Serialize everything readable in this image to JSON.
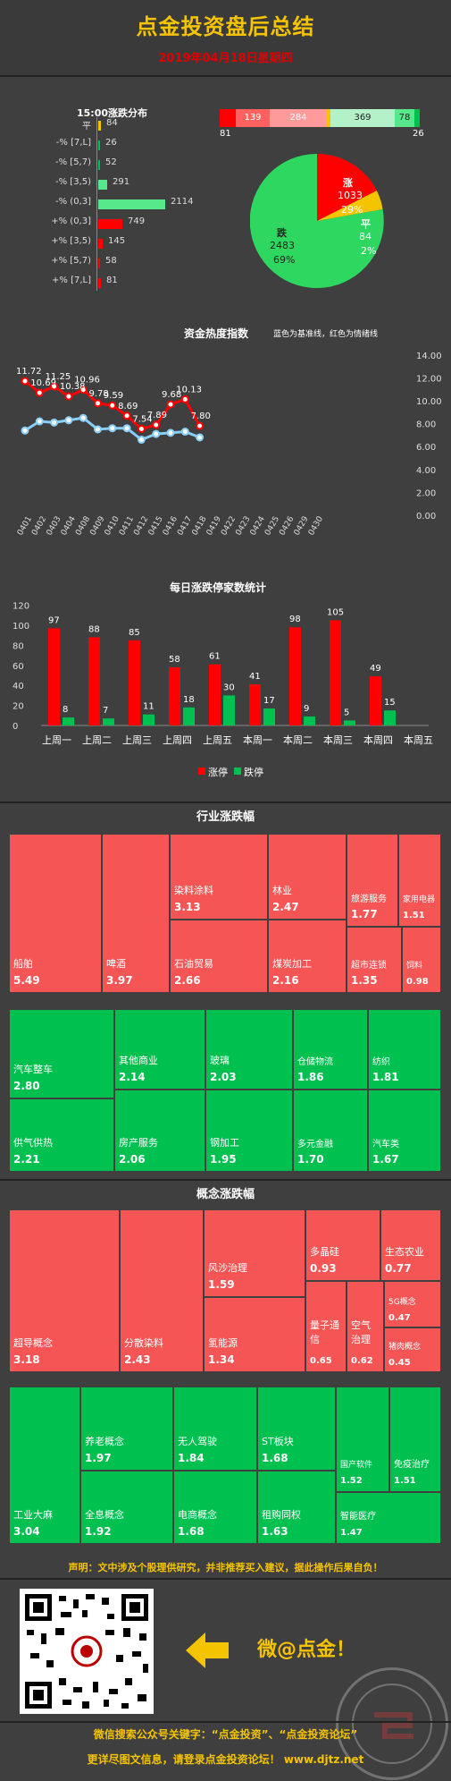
{
  "header": {
    "title": "点金投资盘后总结",
    "date": "2019年04月18日星期四"
  },
  "distribution": {
    "title": "15:00涨跌分布",
    "rows": [
      {
        "label": "平",
        "value": "84",
        "color": "#f5c400"
      },
      {
        "label": "-% [7,L]",
        "value": "26",
        "color": "#00c050"
      },
      {
        "label": "-% [5,7)",
        "value": "52",
        "color": "#00c050"
      },
      {
        "label": "-% [3,5)",
        "value": "291",
        "color": "#56e88a"
      },
      {
        "label": "-% (0,3]",
        "value": "2114",
        "color": "#56e88a"
      },
      {
        "label": "+% (0,3]",
        "value": "749",
        "color": "#ff0000"
      },
      {
        "label": "+% [3,5)",
        "value": "145",
        "color": "#ff0000"
      },
      {
        "label": "+% [5,7)",
        "value": "58",
        "color": "#ff0000"
      },
      {
        "label": "+% [7,L]",
        "value": "81",
        "color": "#ff0000"
      }
    ],
    "stack_top": [
      "139",
      "284",
      "369",
      "78"
    ],
    "stack_left": "81",
    "stack_right": "26"
  },
  "pie": {
    "up_label": "涨",
    "up_count": "1033",
    "up_pct": "29%",
    "flat_label": "平",
    "flat_count": "84",
    "flat_pct": "2%",
    "down_label": "跌",
    "down_count": "2483",
    "down_pct": "69%"
  },
  "heat": {
    "title": "资金热度指数",
    "note": "蓝色为基准线，红色为情绪线",
    "red_values": [
      "11.72",
      "10.69",
      "11.25",
      "10.38",
      "10.96",
      "9.78",
      "9.59",
      "8.69",
      "7.54",
      "7.89",
      "9.68",
      "10.13",
      "7.80"
    ],
    "yticks": [
      "14.00",
      "12.00",
      "10.00",
      "8.00",
      "6.00",
      "4.00",
      "2.00",
      "0.00"
    ],
    "xticks": [
      "0401",
      "0402",
      "0403",
      "0404",
      "0408",
      "0409",
      "0410",
      "0411",
      "0412",
      "0415",
      "0416",
      "0417",
      "0418",
      "0419",
      "0422",
      "0423",
      "0424",
      "0425",
      "0426",
      "0429",
      "0430"
    ]
  },
  "limit": {
    "title": "每日涨跌停家数统计",
    "legend_up": "涨停",
    "legend_down": "跌停"
  },
  "chart_data": [
    {
      "type": "line",
      "title": "资金热度指数",
      "x": [
        "0401",
        "0402",
        "0403",
        "0404",
        "0408",
        "0409",
        "0410",
        "0411",
        "0412",
        "0415",
        "0416",
        "0417",
        "0418"
      ],
      "series": [
        {
          "name": "情绪线",
          "color": "#ff0000",
          "values": [
            11.72,
            10.69,
            11.25,
            10.38,
            10.96,
            9.78,
            9.59,
            8.69,
            7.54,
            7.89,
            9.68,
            10.13,
            7.8
          ]
        },
        {
          "name": "基准线",
          "color": "#87cefa",
          "values": [
            7.4,
            8.2,
            8.1,
            8.3,
            8.5,
            7.5,
            7.6,
            7.6,
            6.6,
            7.1,
            7.2,
            7.3,
            6.8
          ]
        }
      ],
      "ylim": [
        0,
        14
      ]
    },
    {
      "type": "bar",
      "title": "每日涨跌停家数统计",
      "categories": [
        "上周一",
        "上周二",
        "上周三",
        "上周四",
        "上周五",
        "本周一",
        "本周二",
        "本周三",
        "本周四",
        "本周五"
      ],
      "series": [
        {
          "name": "涨停",
          "color": "#ff0000",
          "values": [
            97,
            88,
            85,
            58,
            61,
            41,
            98,
            105,
            49,
            null
          ]
        },
        {
          "name": "跌停",
          "color": "#00c050",
          "values": [
            8,
            7,
            11,
            18,
            30,
            17,
            9,
            5,
            15,
            null
          ]
        }
      ],
      "yticks": [
        "120",
        "100",
        "80",
        "60",
        "40",
        "20",
        "0"
      ],
      "ylim": [
        0,
        120
      ]
    }
  ],
  "industry": {
    "title": "行业涨跌幅",
    "red": [
      {
        "name": "船舶",
        "value": "5.49"
      },
      {
        "name": "啤酒",
        "value": "3.97"
      },
      {
        "name": "染料涂料",
        "value": "3.13"
      },
      {
        "name": "石油贸易",
        "value": "2.66"
      },
      {
        "name": "林业",
        "value": "2.47"
      },
      {
        "name": "煤炭加工",
        "value": "2.16"
      },
      {
        "name": "旅游服务",
        "value": "1.77"
      },
      {
        "name": "家用电器",
        "value": "1.51"
      },
      {
        "name": "超市连锁",
        "value": "1.35"
      },
      {
        "name": "饲料",
        "value": "0.98"
      }
    ],
    "green": [
      {
        "name": "汽车整车",
        "value": "2.80"
      },
      {
        "name": "其他商业",
        "value": "2.14"
      },
      {
        "name": "玻璃",
        "value": "2.03"
      },
      {
        "name": "仓储物流",
        "value": "1.86"
      },
      {
        "name": "纺织",
        "value": "1.81"
      },
      {
        "name": "供气供热",
        "value": "2.21"
      },
      {
        "name": "房产服务",
        "value": "2.06"
      },
      {
        "name": "钢加工",
        "value": "1.95"
      },
      {
        "name": "多元金融",
        "value": "1.70"
      },
      {
        "name": "汽车类",
        "value": "1.67"
      }
    ]
  },
  "concept": {
    "title": "概念涨跌幅",
    "red": [
      {
        "name": "超导概念",
        "value": "3.18"
      },
      {
        "name": "分散染料",
        "value": "2.43"
      },
      {
        "name": "风沙治理",
        "value": "1.59"
      },
      {
        "name": "氢能源",
        "value": "1.34"
      },
      {
        "name": "多晶硅",
        "value": "0.93"
      },
      {
        "name": "生态农业",
        "value": "0.77"
      },
      {
        "name": "量子通信",
        "value": "0.65"
      },
      {
        "name": "空气治理",
        "value": "0.62"
      },
      {
        "name": "5G概念",
        "value": "0.47"
      },
      {
        "name": "猪肉概念",
        "value": "0.45"
      }
    ],
    "green": [
      {
        "name": "工业大麻",
        "value": "3.04"
      },
      {
        "name": "养老概念",
        "value": "1.97"
      },
      {
        "name": "无人驾驶",
        "value": "1.84"
      },
      {
        "name": "ST板块",
        "value": "1.68"
      },
      {
        "name": "全息概念",
        "value": "1.92"
      },
      {
        "name": "电商概念",
        "value": "1.68"
      },
      {
        "name": "租购同权",
        "value": "1.63"
      },
      {
        "name": "国产软件",
        "value": "1.52"
      },
      {
        "name": "免疫治疗",
        "value": "1.51"
      },
      {
        "name": "智能医疗",
        "value": "1.47"
      }
    ]
  },
  "footer": {
    "disclaimer": "声明：文中涉及个股理供研究，并非推荐买入建议，据此操作后果自负！",
    "wechat": "微@点金！",
    "line1": "微信搜索公众号关键字：“点金投资”、“点金投资论坛”",
    "line2": "更详尽图文信息，请登录点金投资论坛！  www.djtz.net",
    "stamp_text": "点金投资论坛 www.djtz.net"
  }
}
